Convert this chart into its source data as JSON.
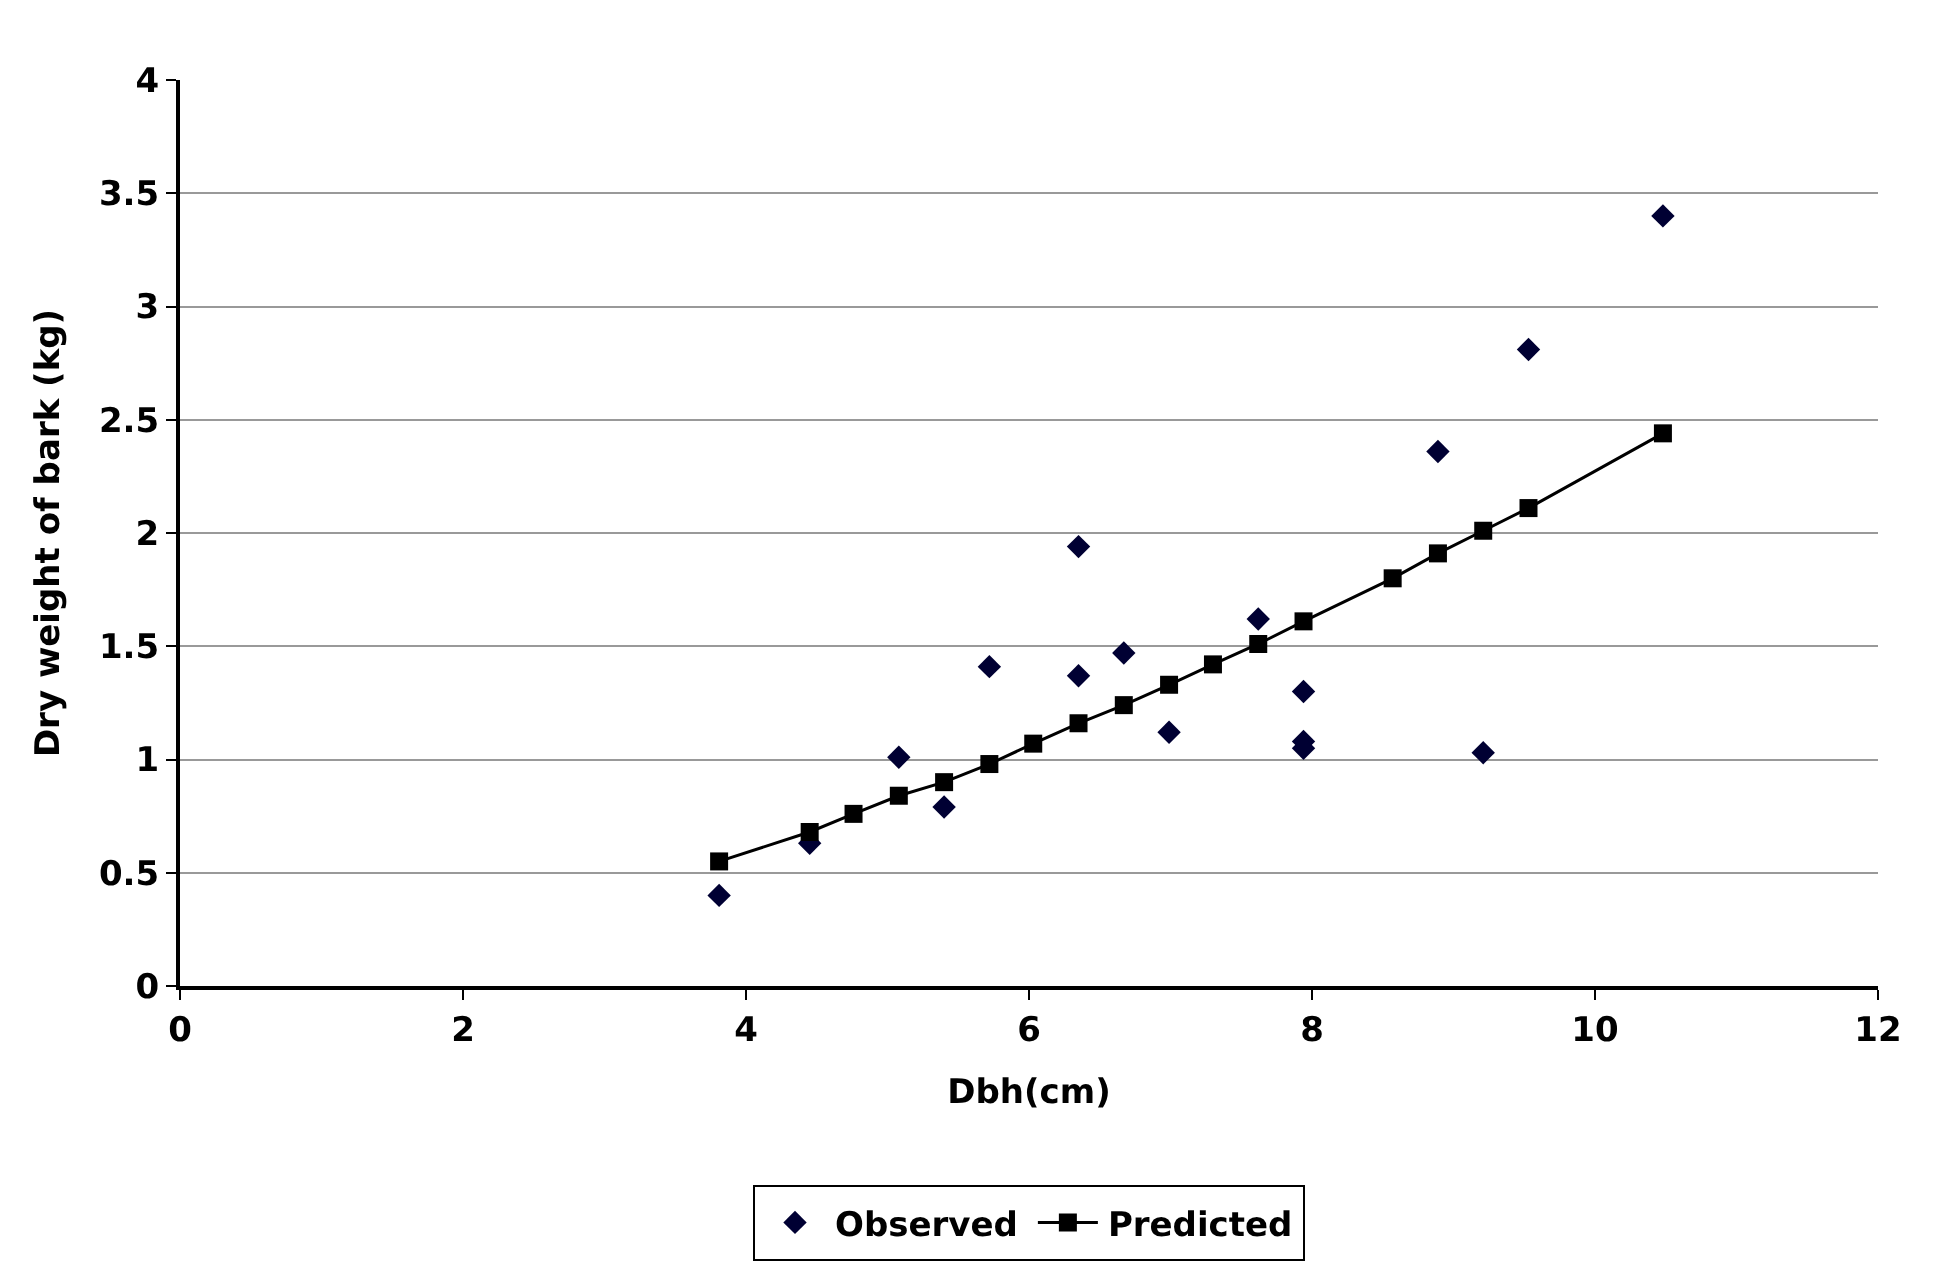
{
  "chart_data": {
    "type": "scatter",
    "xlabel": "Dbh(cm)",
    "ylabel": "Dry weight of bark (kg)",
    "xlim": [
      0,
      12
    ],
    "xticks": [
      0,
      2,
      4,
      6,
      8,
      10,
      12
    ],
    "ylim": [
      0,
      4
    ],
    "yticks": [
      0,
      0.5,
      1,
      1.5,
      2,
      2.5,
      3,
      3.5,
      4
    ],
    "grid": "y",
    "legend": "bottom",
    "series": [
      {
        "name": "Observed",
        "marker": "diamond",
        "color": "#000033",
        "x": [
          3.81,
          4.45,
          5.08,
          5.4,
          5.72,
          6.35,
          6.35,
          6.67,
          6.99,
          7.62,
          7.94,
          7.94,
          7.94,
          8.89,
          9.21,
          9.53,
          10.48
        ],
        "values": [
          0.4,
          0.63,
          1.01,
          0.79,
          1.41,
          1.94,
          1.37,
          1.47,
          1.12,
          1.62,
          1.3,
          1.08,
          1.05,
          2.36,
          1.03,
          2.81,
          3.4
        ]
      },
      {
        "name": "Predicted",
        "type": "line",
        "marker": "square",
        "color": "#000000",
        "x": [
          3.81,
          4.45,
          4.76,
          5.08,
          5.4,
          5.72,
          6.03,
          6.35,
          6.67,
          6.99,
          7.3,
          7.62,
          7.94,
          8.57,
          8.89,
          9.21,
          9.53,
          10.48
        ],
        "values": [
          0.55,
          0.68,
          0.76,
          0.84,
          0.9,
          0.98,
          1.07,
          1.16,
          1.24,
          1.33,
          1.42,
          1.51,
          1.61,
          1.8,
          1.91,
          2.01,
          2.11,
          2.44
        ]
      }
    ]
  }
}
